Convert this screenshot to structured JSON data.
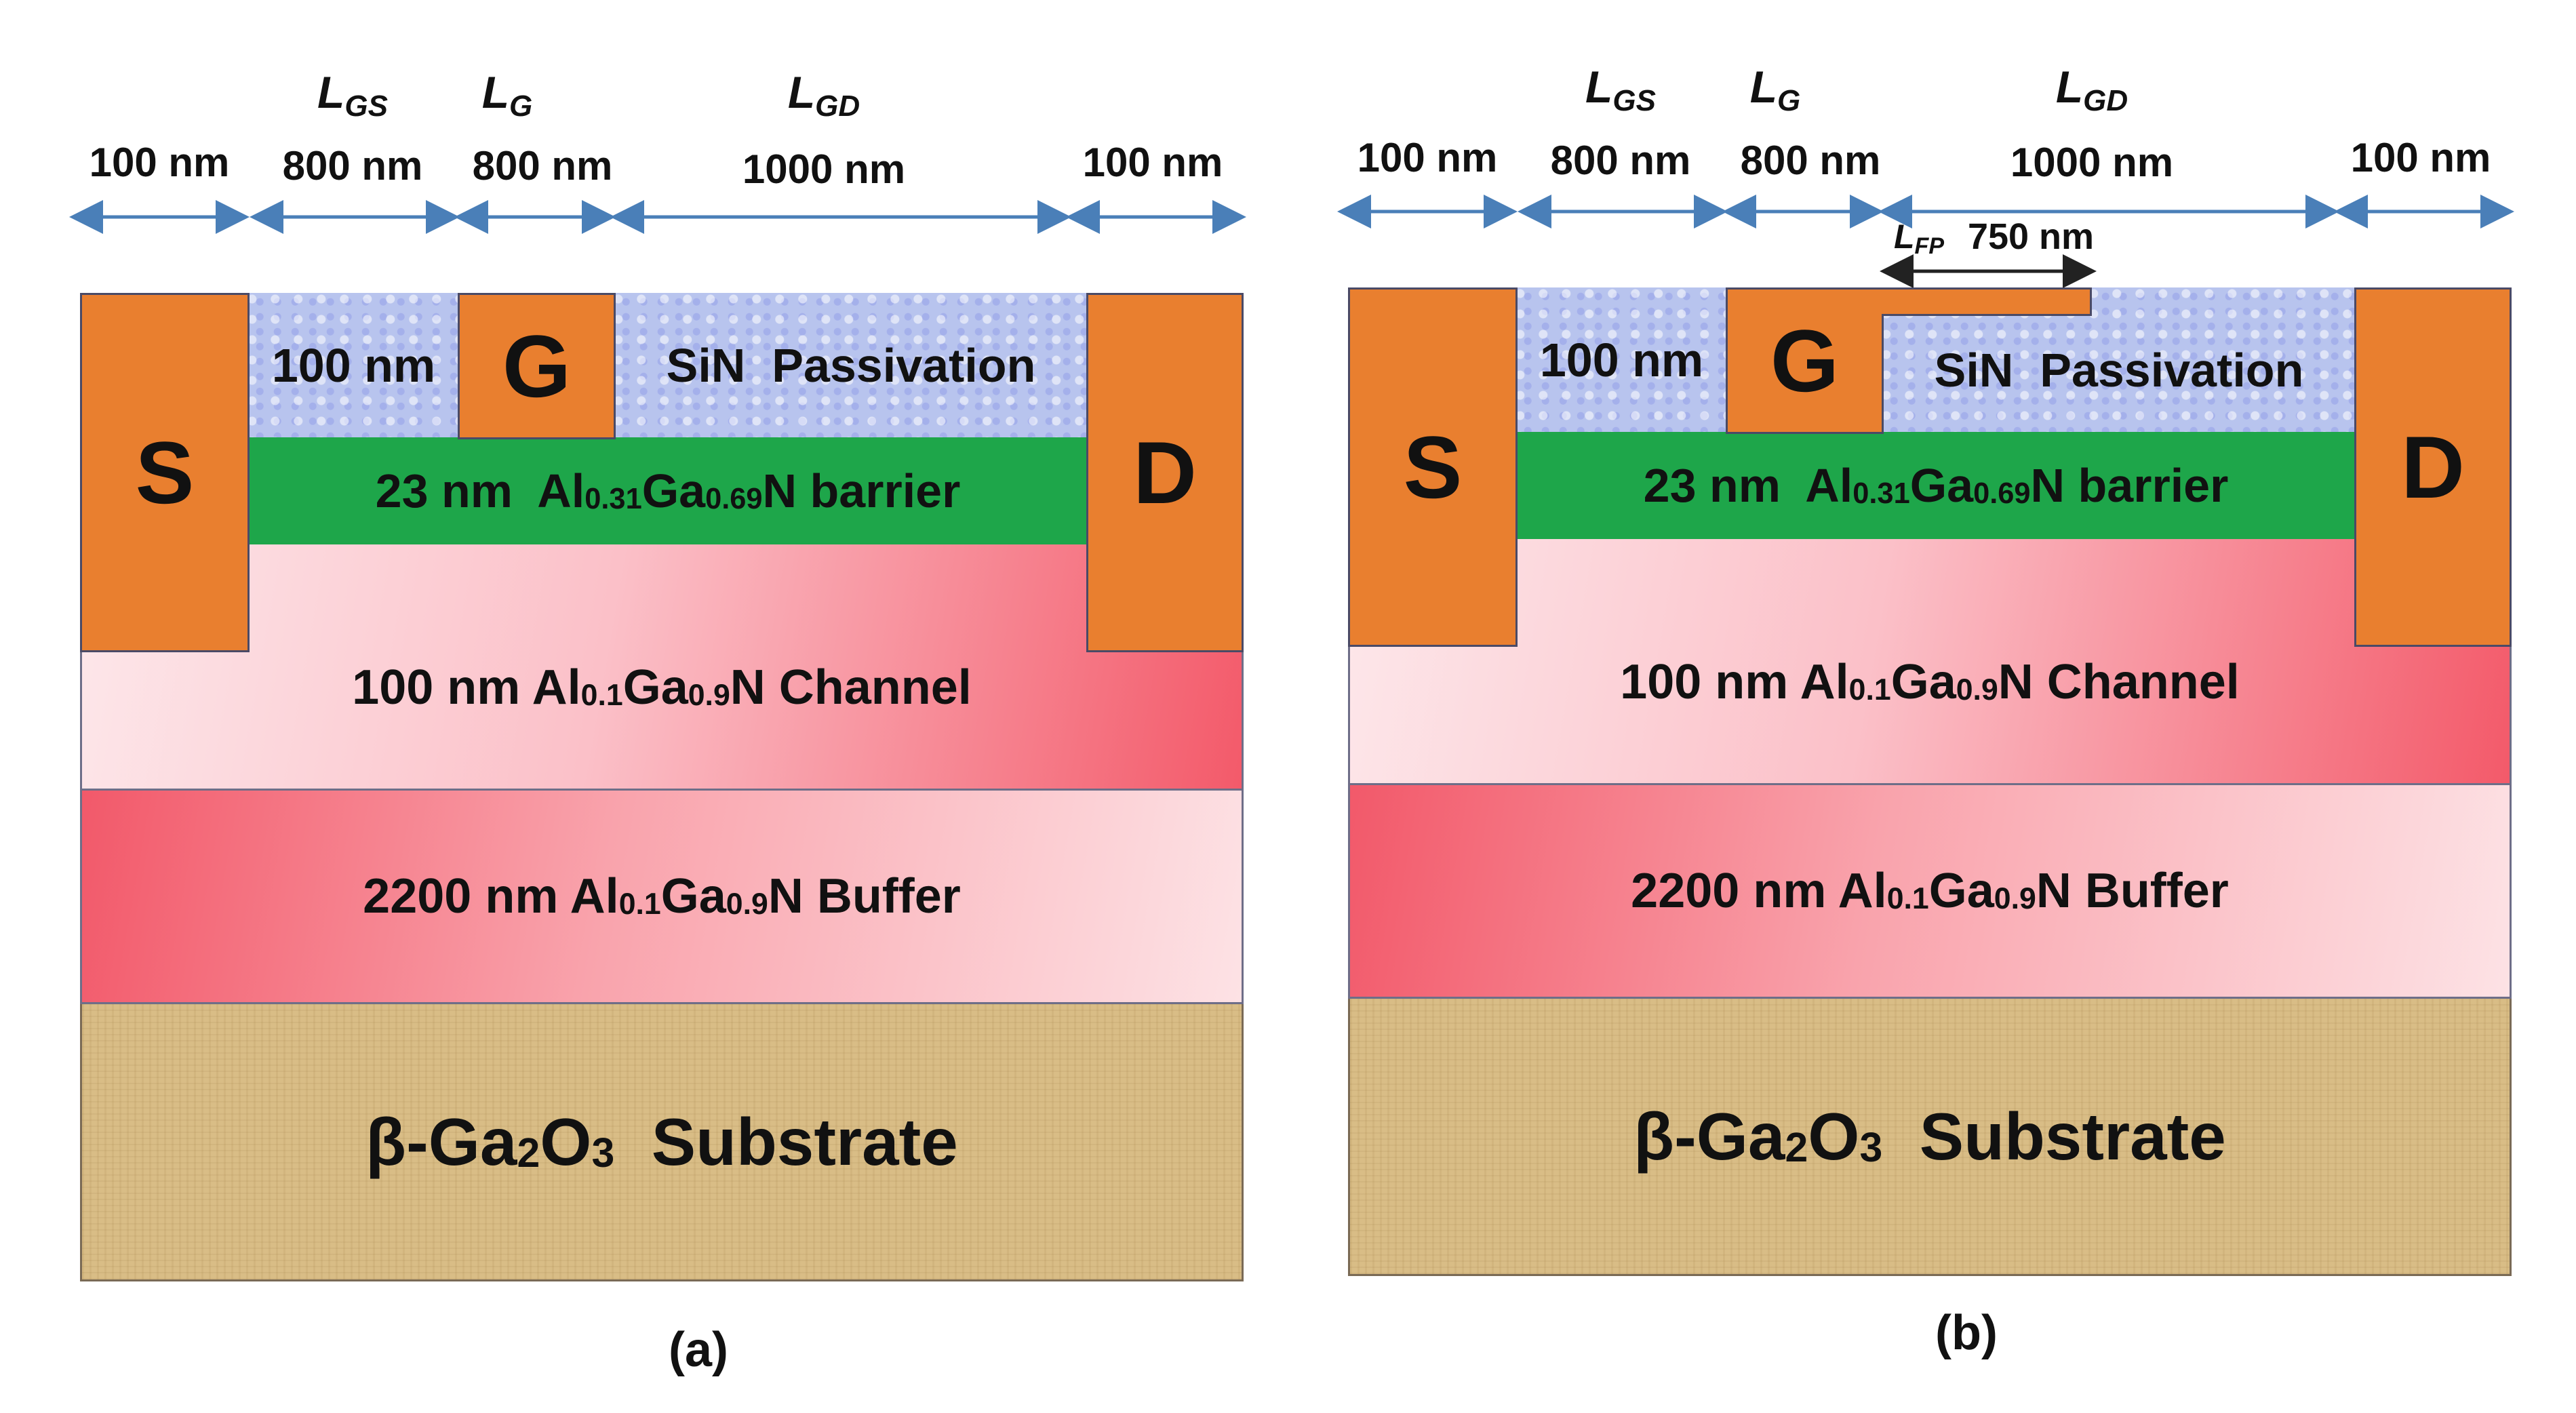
{
  "panels": [
    {
      "caption": "(a)",
      "dims": {
        "lgs": {
          "main": "L",
          "sub": "GS"
        },
        "lg": {
          "main": "L",
          "sub": "G"
        },
        "lgd": {
          "main": "L",
          "sub": "GD"
        },
        "source_width": "100 nm",
        "gs_len": "800 nm",
        "gate_len": "800 nm",
        "gd_len": "1000 nm",
        "drain_width": "100 nm"
      },
      "electrodes": {
        "source": "S",
        "gate": "G",
        "drain": "D"
      },
      "layers": {
        "sin_thickness": "100 nm",
        "sin_label": "SiN  Passivation",
        "barrier": {
          "pre": "23 nm  Al",
          "x": "0.31",
          "mid": "Ga",
          "y": "0.69",
          "post": "N barrier"
        },
        "channel": {
          "pre": "100 nm Al",
          "x": "0.1",
          "mid": "Ga",
          "y": "0.9",
          "post": "N Channel"
        },
        "buffer": {
          "pre": "2200 nm Al",
          "x": "0.1",
          "mid": "Ga",
          "y": "0.9",
          "post": "N Buffer"
        },
        "substrate": {
          "pre": "β-Ga",
          "a": "2",
          "mid": "O",
          "b": "3",
          "post": "  Substrate"
        }
      }
    },
    {
      "caption": "(b)",
      "dims": {
        "lgs": {
          "main": "L",
          "sub": "GS"
        },
        "lg": {
          "main": "L",
          "sub": "G"
        },
        "lgd": {
          "main": "L",
          "sub": "GD"
        },
        "source_width": "100 nm",
        "gs_len": "800 nm",
        "gate_len": "800 nm",
        "gd_len": "1000 nm",
        "drain_width": "100 nm",
        "lfp": {
          "main": "L",
          "sub": "FP"
        },
        "fp_len": "750 nm"
      },
      "electrodes": {
        "source": "S",
        "gate": "G",
        "drain": "D"
      },
      "layers": {
        "sin_thickness": "100 nm",
        "sin_label": "SiN  Passivation",
        "barrier": {
          "pre": "23 nm  Al",
          "x": "0.31",
          "mid": "Ga",
          "y": "0.69",
          "post": "N barrier"
        },
        "channel": {
          "pre": "100 nm Al",
          "x": "0.1",
          "mid": "Ga",
          "y": "0.9",
          "post": "N Channel"
        },
        "buffer": {
          "pre": "2200 nm Al",
          "x": "0.1",
          "mid": "Ga",
          "y": "0.9",
          "post": "N Buffer"
        },
        "substrate": {
          "pre": "β-Ga",
          "a": "2",
          "mid": "O",
          "b": "3",
          "post": "  Substrate"
        }
      }
    }
  ],
  "colors": {
    "metal": "#e97f2f",
    "barrier": "#1ea64a",
    "sin": "#b8c4ee",
    "arrow": "#4a7fb8",
    "substrate": "#d9bd86"
  }
}
